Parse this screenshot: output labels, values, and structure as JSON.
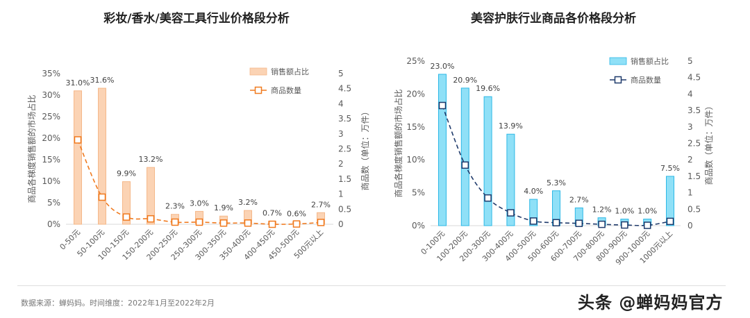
{
  "charts_titles": [
    "彩妆/香水/美容工具行业价格段分析",
    "美容护肤行业商品各价格段分析"
  ],
  "footer": {
    "source": "数据来源：蝉妈妈。时间维度：2022年1月至2022年2月",
    "watermark": "头条 @蝉妈妈官方"
  },
  "chart_data": [
    {
      "type": "bar+line",
      "title": "彩妆/香水/美容工具行业价格段分析",
      "categories": [
        "0-50元",
        "50-100元",
        "100-150元",
        "150-200元",
        "200-250元",
        "250-300元",
        "300-350元",
        "350-400元",
        "400-450元",
        "450-500元",
        "500元以上"
      ],
      "ylabel": "商品各梯度销售额的市场占比",
      "y2label": "商品数（单位：万件）",
      "ylim": [
        0,
        35
      ],
      "yticks": [
        "0%",
        "5%",
        "10%",
        "15%",
        "20%",
        "25%",
        "30%",
        "35%"
      ],
      "y2lim": [
        0,
        5
      ],
      "y2ticks": [
        "0",
        "0.5",
        "1",
        "1.5",
        "2",
        "2.5",
        "3",
        "3.5",
        "4",
        "4.5",
        "5"
      ],
      "legend_position": "top-right",
      "bar_color": "#fbd3b4",
      "bar_edge": "#f5b889",
      "line_color": "#f07a1f",
      "series": [
        {
          "name": "销售额占比",
          "kind": "bar",
          "values": [
            31.0,
            31.6,
            9.9,
            13.2,
            2.3,
            3.0,
            1.9,
            3.2,
            0.7,
            0.6,
            2.7
          ],
          "labels": [
            "31.0%",
            "31.6%",
            "9.9%",
            "13.2%",
            "2.3%",
            "3.0%",
            "1.9%",
            "3.2%",
            "0.7%",
            "0.6%",
            "2.7%"
          ]
        },
        {
          "name": "商品数量",
          "kind": "line",
          "axis": "right",
          "values": [
            2.8,
            0.9,
            0.24,
            0.18,
            0.07,
            0.07,
            0.04,
            0.04,
            0.0,
            0.01,
            0.06
          ]
        }
      ]
    },
    {
      "type": "bar+line",
      "title": "美容护肤行业商品各价格段分析",
      "categories": [
        "0-100元",
        "100-200元",
        "200-300元",
        "300-400元",
        "400-500元",
        "500-600元",
        "600-700元",
        "700-800元",
        "800-900元",
        "900-1000元",
        "1000元以上"
      ],
      "ylabel": "商品各梯度销售额的市场占比",
      "y2label": "商品数（单位：万件）",
      "ylim": [
        0,
        25
      ],
      "yticks": [
        "0%",
        "5%",
        "10%",
        "15%",
        "20%",
        "25%"
      ],
      "y2lim": [
        0,
        5
      ],
      "y2ticks": [
        "0",
        "0.5",
        "1",
        "1.5",
        "2",
        "2.5",
        "3",
        "3.5",
        "4",
        "4.5",
        "5"
      ],
      "legend_position": "top-right",
      "bar_color": "#8fe0f7",
      "bar_edge": "#2cb8e6",
      "line_color": "#1f3a6b",
      "series": [
        {
          "name": "销售额占比",
          "kind": "bar",
          "values": [
            23.0,
            20.9,
            19.6,
            13.9,
            4.0,
            5.3,
            2.7,
            1.2,
            1.0,
            1.0,
            7.5
          ],
          "labels": [
            "23.0%",
            "20.9%",
            "19.6%",
            "13.9%",
            "4.0%",
            "5.3%",
            "2.7%",
            "1.2%",
            "1.0%",
            "1.0%",
            "7.5%"
          ]
        },
        {
          "name": "商品数量",
          "kind": "line",
          "axis": "right",
          "values": [
            3.65,
            1.84,
            0.84,
            0.39,
            0.14,
            0.09,
            0.07,
            0.04,
            0.02,
            0.01,
            0.13
          ]
        }
      ]
    }
  ]
}
